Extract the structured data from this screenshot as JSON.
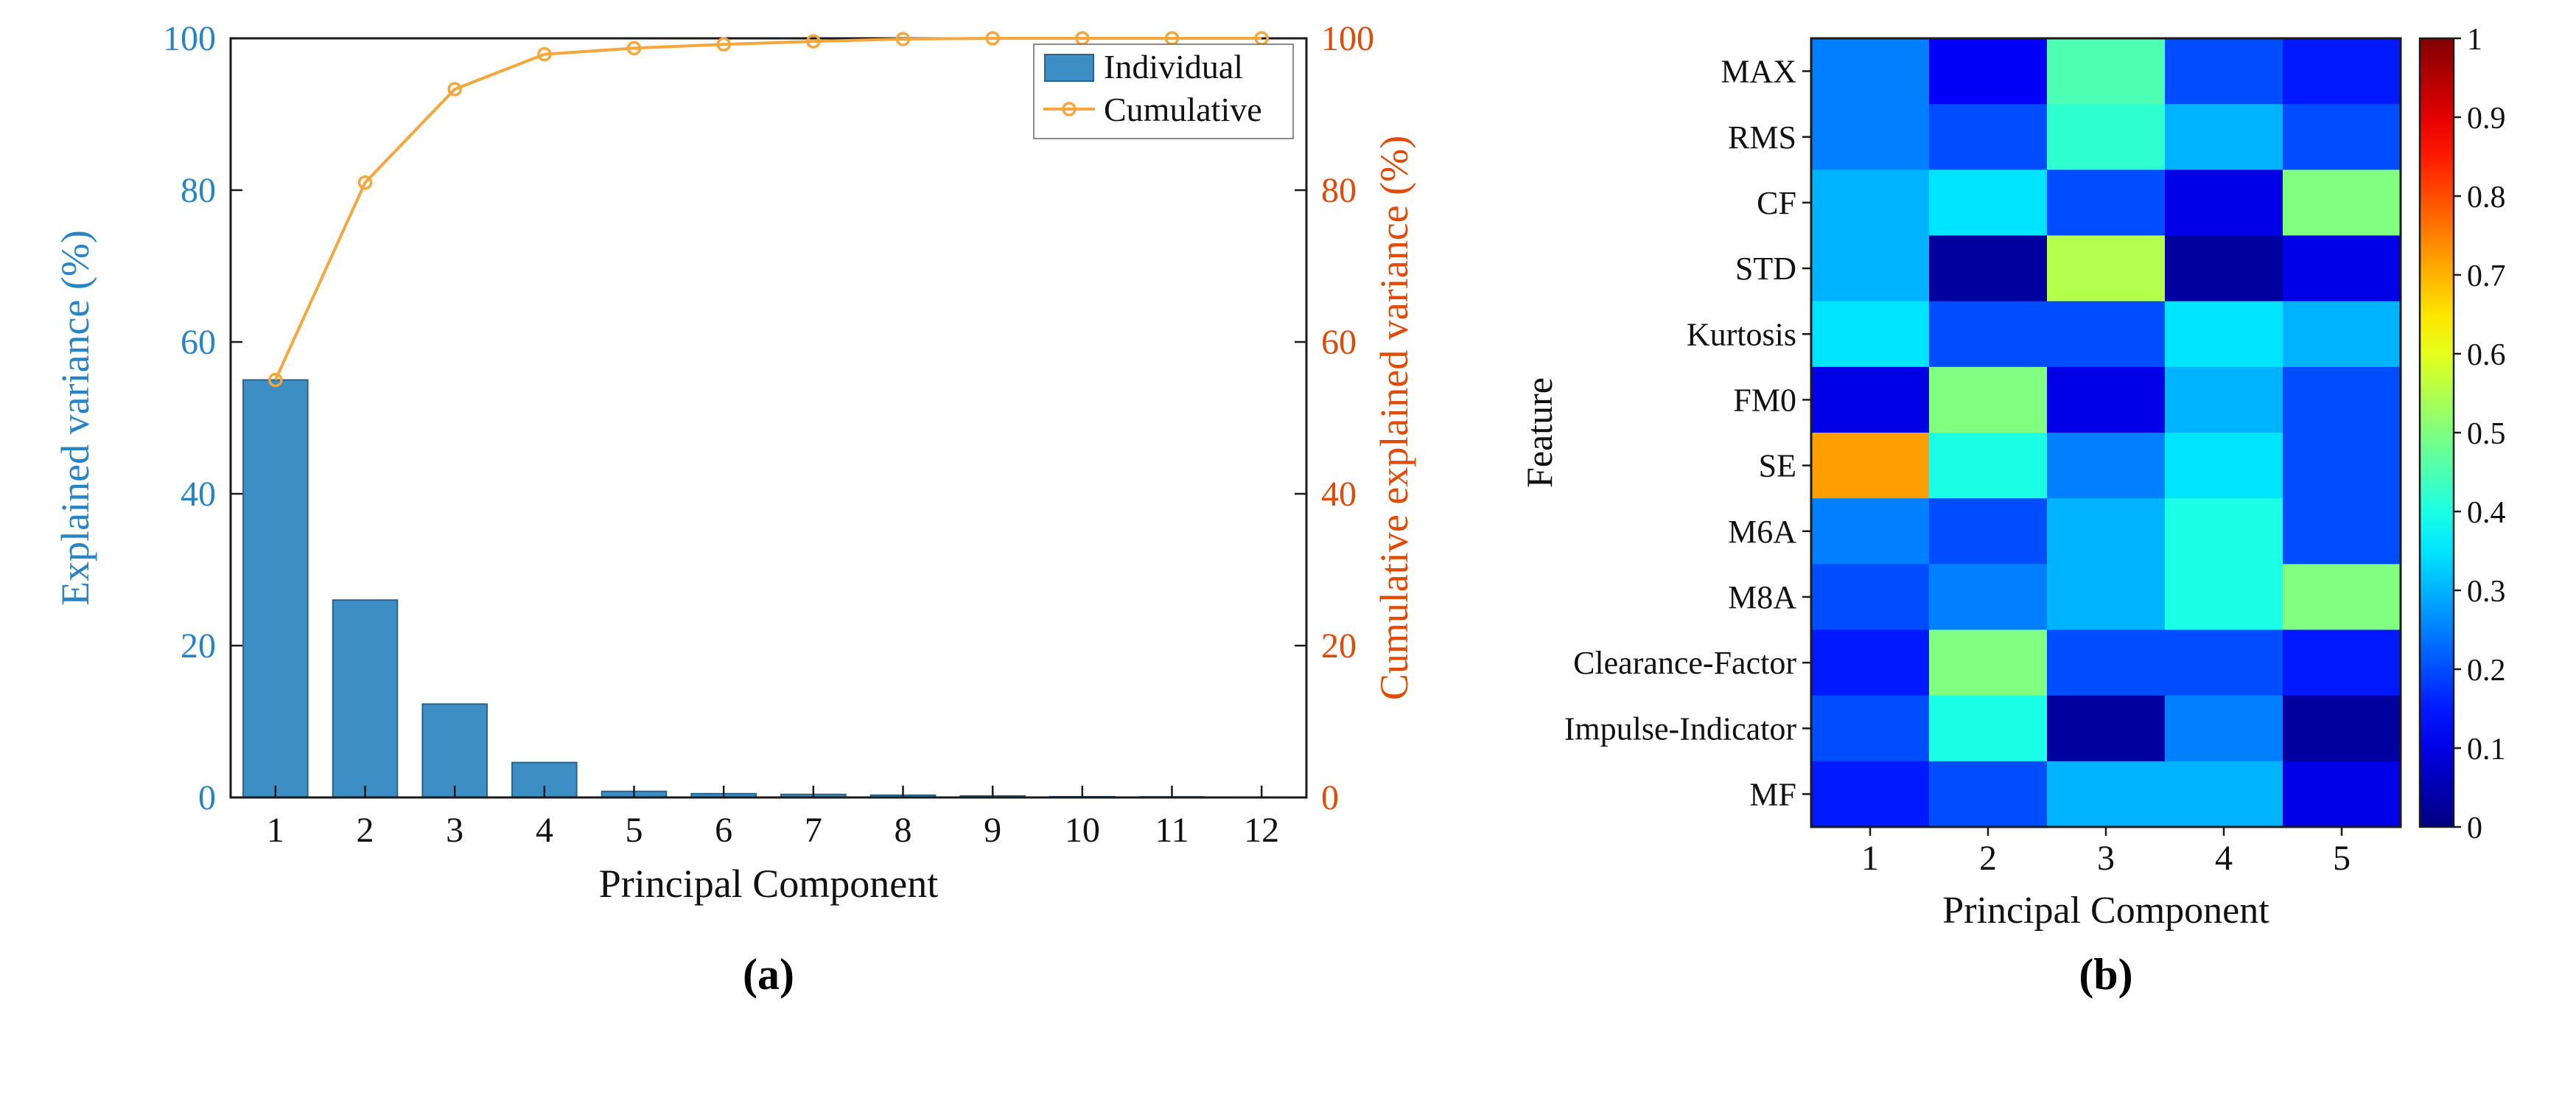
{
  "figure": {
    "panel_a_label": "(a)",
    "panel_b_label": "(b)"
  },
  "chart_data": [
    {
      "type": "bar",
      "subtype": "pareto-bar-line",
      "title": "",
      "xlabel": "Principal Component",
      "ylabel_left": "Explained variance (%)",
      "ylabel_right": "Cumulative explained variance (%)",
      "categories": [
        1,
        2,
        3,
        4,
        5,
        6,
        7,
        8,
        9,
        10,
        11,
        12
      ],
      "series": [
        {
          "name": "Individual",
          "type": "bar",
          "values": [
            55,
            26,
            12.3,
            4.6,
            0.8,
            0.5,
            0.4,
            0.3,
            0.2,
            0.1,
            0.08,
            0.05
          ]
        },
        {
          "name": "Cumulative",
          "type": "line",
          "values": [
            55,
            81,
            93.3,
            97.9,
            98.7,
            99.2,
            99.6,
            99.9,
            100,
            100,
            100,
            100
          ]
        }
      ],
      "ylim": [
        0,
        100
      ],
      "yticks": [
        0,
        20,
        40,
        60,
        80,
        100
      ],
      "legend": [
        "Individual",
        "Cumulative"
      ],
      "legend_position": "top-right",
      "grid": false,
      "colors": {
        "bar": "#3d8ec4",
        "bar_edge": "#27648f",
        "line": "#f6a73b",
        "left_axis": "#2585c7",
        "right_axis": "#e24a05",
        "axis_box": "#1a1a1a",
        "tick_text": "#111111"
      }
    },
    {
      "type": "heatmap",
      "title": "",
      "xlabel": "Principal Component",
      "ylabel": "Feature",
      "x_categories": [
        "1",
        "2",
        "3",
        "4",
        "5"
      ],
      "y_categories": [
        "MAX",
        "RMS",
        "CF",
        "STD",
        "Kurtosis",
        "FM0",
        "SE",
        "M6A",
        "M8A",
        "Clearance-Factor",
        "Impulse-Indicator",
        "MF"
      ],
      "values": [
        [
          0.25,
          0.12,
          0.45,
          0.2,
          0.15
        ],
        [
          0.25,
          0.2,
          0.42,
          0.3,
          0.2
        ],
        [
          0.3,
          0.35,
          0.2,
          0.1,
          0.5
        ],
        [
          0.3,
          0.03,
          0.55,
          0.03,
          0.1
        ],
        [
          0.35,
          0.2,
          0.2,
          0.35,
          0.3
        ],
        [
          0.1,
          0.5,
          0.1,
          0.3,
          0.2
        ],
        [
          0.72,
          0.4,
          0.25,
          0.35,
          0.2
        ],
        [
          0.25,
          0.2,
          0.3,
          0.4,
          0.2
        ],
        [
          0.2,
          0.25,
          0.3,
          0.4,
          0.5
        ],
        [
          0.15,
          0.5,
          0.2,
          0.2,
          0.15
        ],
        [
          0.2,
          0.4,
          0.03,
          0.25,
          0.03
        ],
        [
          0.15,
          0.2,
          0.3,
          0.3,
          0.1
        ]
      ],
      "colormap": "jet",
      "colorbar": {
        "min": 0,
        "max": 1,
        "ticks": [
          0,
          0.1,
          0.2,
          0.3,
          0.4,
          0.5,
          0.6,
          0.7,
          0.8,
          0.9,
          1
        ]
      },
      "grid": false
    }
  ]
}
